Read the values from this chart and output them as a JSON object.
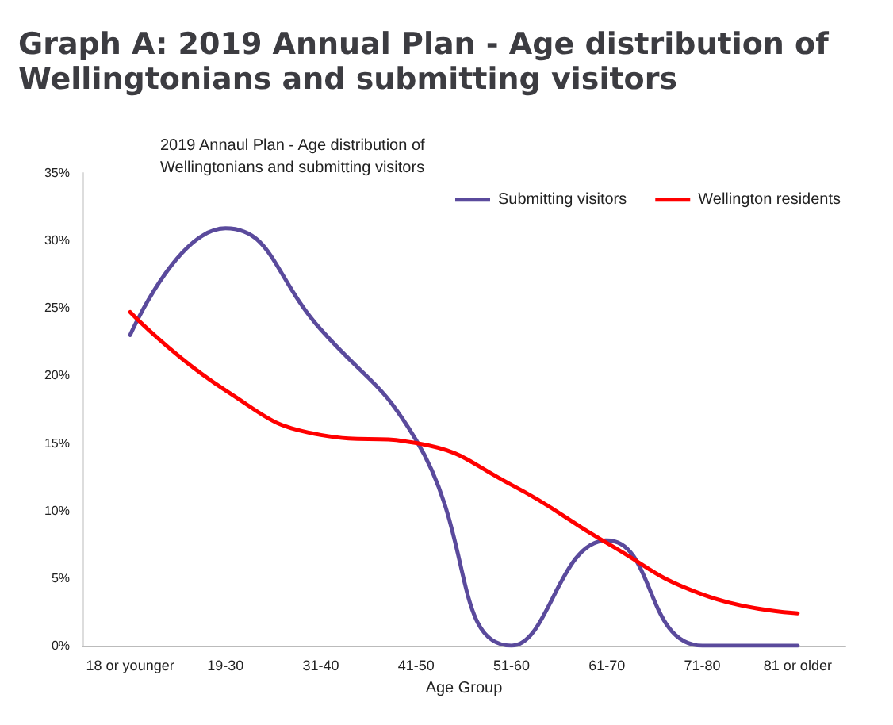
{
  "chart_data": {
    "type": "line",
    "title": "Graph A: 2019 Annual Plan - Age distribution of Wellingtonians and submitting visitors",
    "subtitle": "2019 Annaul Plan - Age distribution of Wellingtonians and submitting visitors",
    "xlabel": "Age Group",
    "categories": [
      "18 or younger",
      "19-30",
      "31-40",
      "41-50",
      "51-60",
      "61-70",
      "71-80",
      "81 or older"
    ],
    "series": [
      {
        "name": "Submitting visitors",
        "color": "#5a4a9c",
        "values": [
          23.0,
          30.9,
          23.4,
          15.2,
          0,
          7.8,
          0,
          0
        ]
      },
      {
        "name": "Wellington residents",
        "color": "#ff0000",
        "values": [
          24.7,
          18.9,
          15.6,
          15.0,
          11.9,
          7.6,
          3.8,
          2.4
        ]
      }
    ],
    "ylim": [
      0,
      35
    ],
    "yticks": [
      {
        "value": 0,
        "label": "0%"
      },
      {
        "value": 5,
        "label": "5%"
      },
      {
        "value": 10,
        "label": "10%"
      },
      {
        "value": 15,
        "label": "15%"
      },
      {
        "value": 20,
        "label": "20%"
      },
      {
        "value": 25,
        "label": "25%"
      },
      {
        "value": 30,
        "label": "30%"
      },
      {
        "value": 35,
        "label": "35%"
      }
    ],
    "grid": false,
    "legend": "top right",
    "marker": "none",
    "line_style": "solid"
  }
}
